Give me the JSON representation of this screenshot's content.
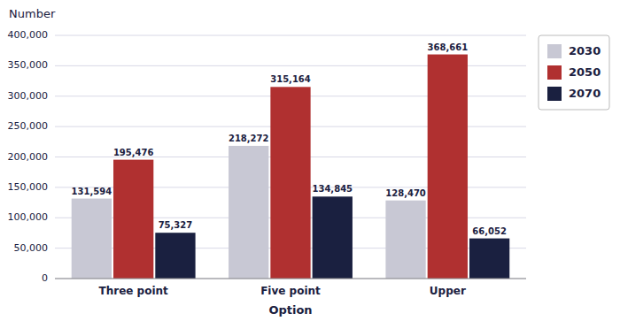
{
  "chart_data": {
    "type": "bar",
    "categories": [
      "Three point",
      "Five point",
      "Upper"
    ],
    "series": [
      {
        "name": "2030",
        "color": "#c8c8d4",
        "values": [
          131594,
          218272,
          128470
        ],
        "value_labels": [
          "131,594",
          "218,272",
          "128,470"
        ]
      },
      {
        "name": "2050",
        "color": "#b03030",
        "values": [
          195476,
          315164,
          368661
        ],
        "value_labels": [
          "195,476",
          "315,164",
          "368,661"
        ]
      },
      {
        "name": "2070",
        "color": "#1a2040",
        "values": [
          75327,
          134845,
          66052
        ],
        "value_labels": [
          "75,327",
          "134,845",
          "66,052"
        ]
      }
    ],
    "xlabel": "Option",
    "ylabel": "Number",
    "ylim": [
      0,
      400000
    ],
    "yticks": [
      0,
      {
        "value": 50000,
        "label": "50,000"
      },
      {
        "value": 100000,
        "label": "100,000"
      },
      {
        "value": 150000,
        "label": "150,000"
      },
      {
        "value": 200000,
        "label": "200,000"
      },
      {
        "value": 250000,
        "label": "250,000"
      },
      {
        "value": 300000,
        "label": "300,000"
      },
      {
        "value": 350000,
        "label": "350,000"
      },
      {
        "value": 400000,
        "label": "400,000"
      }
    ],
    "grid": true,
    "data_labels": true,
    "legend": "right"
  }
}
